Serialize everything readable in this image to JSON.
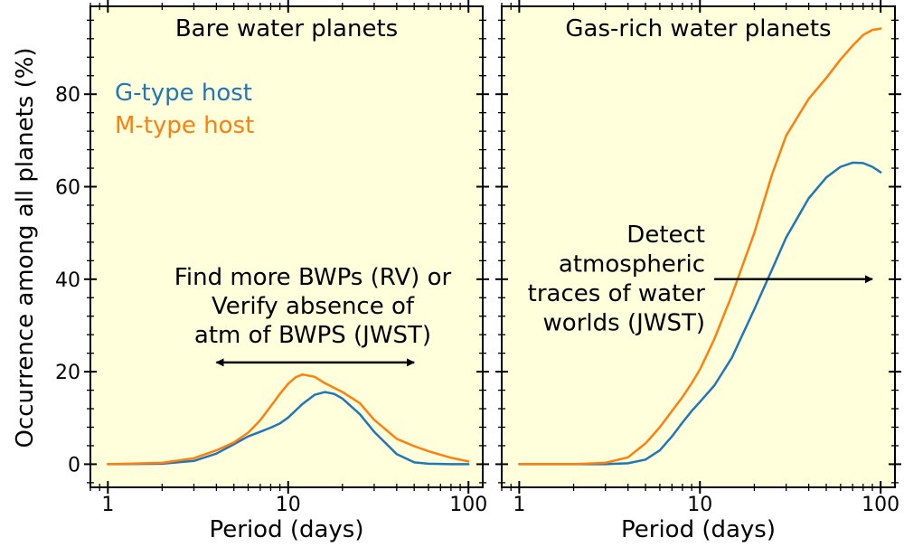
{
  "ylabel": "Occurrence among all planets (%)",
  "legend": [
    {
      "name": "G-type host",
      "color": "#1f77b4"
    },
    {
      "name": "M-type host",
      "color": "#ff7f0e"
    }
  ],
  "panel_background": "#ffffdc",
  "chart_data": [
    {
      "type": "line",
      "title": "Bare water planets",
      "xlabel": "Period (days)",
      "ylabel": "Occurrence among all planets (%)",
      "x_scale": "log",
      "xlim": [
        0.8,
        120
      ],
      "ylim": [
        -5,
        99
      ],
      "xticks": [
        1,
        10,
        100
      ],
      "yticks": [
        0,
        20,
        40,
        60,
        80
      ],
      "grid": false,
      "legend_position": "top-left",
      "series": [
        {
          "name": "G-type host",
          "color": "#1f77b4",
          "x": [
            1,
            2,
            3,
            4,
            5,
            6,
            7,
            8,
            9,
            10,
            12,
            14,
            16,
            18,
            20,
            25,
            30,
            40,
            50,
            60,
            80,
            100
          ],
          "y": [
            0,
            0.1,
            0.7,
            2.3,
            4.3,
            6.0,
            7.0,
            7.9,
            8.8,
            10.1,
            13.0,
            15.0,
            15.6,
            15.2,
            14.2,
            10.8,
            7.0,
            2.2,
            0.4,
            0.1,
            0,
            0
          ]
        },
        {
          "name": "M-type host",
          "color": "#ff7f0e",
          "x": [
            1,
            2,
            3,
            4,
            5,
            6,
            7,
            8,
            9,
            10,
            11,
            12,
            14,
            16,
            18,
            20,
            25,
            30,
            40,
            50,
            60,
            80,
            100
          ],
          "y": [
            0,
            0.3,
            1.3,
            3.0,
            4.7,
            6.8,
            9.5,
            12.5,
            15.2,
            17.4,
            18.8,
            19.4,
            18.9,
            17.5,
            16.5,
            15.6,
            13.2,
            9.6,
            5.5,
            3.9,
            2.8,
            1.4,
            0.6
          ]
        }
      ],
      "annotation": {
        "lines": [
          "Find more BWPs (RV) or",
          "Verify absence of",
          "atm of BWPS (JWST)"
        ],
        "arrow_x": [
          4,
          50
        ],
        "arrow_y": 22,
        "arrow_style": "double-headed"
      }
    },
    {
      "type": "line",
      "title": "Gas-rich water planets",
      "xlabel": "Period (days)",
      "x_scale": "log",
      "xlim": [
        0.8,
        120
      ],
      "ylim": [
        -5,
        99
      ],
      "xticks": [
        1,
        10,
        100
      ],
      "yticks": [
        0,
        20,
        40,
        60,
        80
      ],
      "grid": false,
      "series": [
        {
          "name": "G-type host",
          "color": "#1f77b4",
          "x": [
            1,
            2,
            3,
            4,
            5,
            6,
            7,
            8,
            9,
            10,
            12,
            15,
            20,
            25,
            30,
            40,
            50,
            60,
            70,
            80,
            90,
            100
          ],
          "y": [
            0,
            0,
            0,
            0.2,
            1.0,
            3.0,
            6.0,
            9.0,
            11.5,
            13.5,
            17.0,
            23.0,
            33.5,
            42.0,
            49.0,
            57.5,
            62.0,
            64.3,
            65.2,
            65.1,
            64.3,
            63.1
          ]
        },
        {
          "name": "M-type host",
          "color": "#ff7f0e",
          "x": [
            1,
            2,
            3,
            4,
            5,
            6,
            7,
            8,
            9,
            10,
            12,
            15,
            20,
            25,
            30,
            40,
            50,
            60,
            70,
            80,
            90,
            100
          ],
          "y": [
            0,
            0,
            0.3,
            1.5,
            4.5,
            8.0,
            11.5,
            14.5,
            17.5,
            20.5,
            27.0,
            36.5,
            50.0,
            62.5,
            71.0,
            79.0,
            83.5,
            87.5,
            90.5,
            92.8,
            93.9,
            94.2
          ]
        }
      ],
      "annotation": {
        "lines": [
          "Detect",
          "atmospheric",
          "traces of water",
          "worlds (JWST)"
        ],
        "arrow_x": [
          12,
          90
        ],
        "arrow_y": 40,
        "arrow_style": "single-headed"
      }
    }
  ]
}
